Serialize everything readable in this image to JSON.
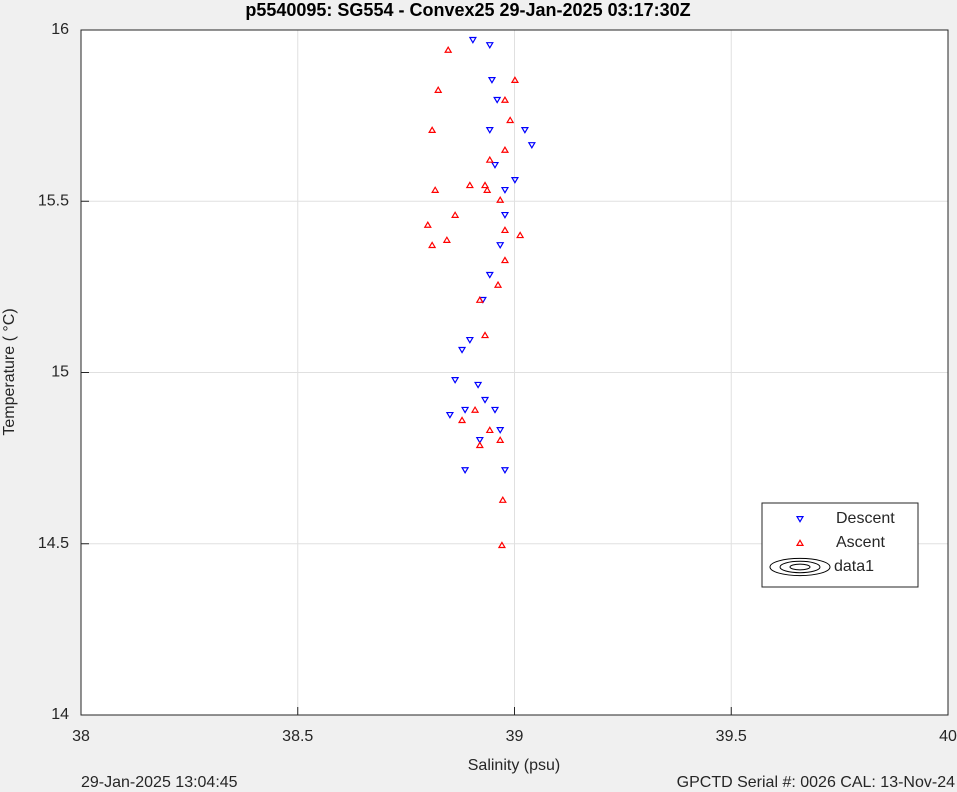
{
  "chart_data": {
    "type": "scatter",
    "title": "p5540095: SG554 - Convex25 29-Jan-2025 03:17:30Z",
    "x_label": "Salinity (psu)",
    "y_label": "Temperature (   °C)",
    "xlim": [
      38,
      40
    ],
    "xticks": [
      38,
      38.5,
      39,
      39.5,
      40
    ],
    "ylim": [
      14,
      16
    ],
    "yticks": [
      14,
      14.5,
      15,
      15.5,
      16
    ],
    "grid": true,
    "legend": "right",
    "footer_left": "29-Jan-2025 13:04:45",
    "footer_right": "GPCTD Serial #: 0026 CAL: 13-Nov-24",
    "series": [
      {
        "name": "Descent",
        "color": "#0000ff",
        "marker": "down-triangle",
        "x": [
          38.904,
          38.943,
          38.948,
          38.96,
          38.943,
          38.955,
          38.978,
          39.024,
          39.04,
          39.001,
          38.978,
          38.967,
          38.943,
          38.927,
          38.897,
          38.879,
          38.863,
          38.851,
          38.886,
          38.916,
          38.932,
          38.886,
          38.92,
          38.955,
          38.967,
          38.978
        ],
        "values": [
          15.971,
          15.956,
          15.854,
          15.796,
          15.708,
          15.606,
          15.533,
          15.708,
          15.664,
          15.562,
          15.46,
          15.372,
          15.285,
          15.212,
          15.095,
          15.066,
          14.978,
          14.876,
          14.891,
          14.964,
          14.92,
          14.715,
          14.803,
          14.891,
          14.832,
          14.715
        ]
      },
      {
        "name": "Ascent",
        "color": "#ff0000",
        "marker": "up-triangle",
        "x": [
          38.971,
          38.973,
          38.967,
          38.943,
          38.909,
          38.879,
          38.92,
          38.932,
          38.92,
          38.962,
          38.978,
          39.013,
          38.978,
          38.967,
          38.932,
          38.978,
          38.943,
          38.99,
          39.001,
          38.978,
          38.937,
          38.897,
          38.863,
          38.844,
          38.81,
          38.8,
          38.817,
          38.81,
          38.824,
          38.847
        ],
        "values": [
          14.496,
          14.628,
          14.803,
          14.832,
          14.891,
          14.861,
          14.788,
          15.109,
          15.212,
          15.256,
          15.328,
          15.401,
          15.416,
          15.504,
          15.547,
          15.65,
          15.621,
          15.737,
          15.854,
          15.796,
          15.533,
          15.547,
          15.46,
          15.387,
          15.372,
          15.431,
          15.533,
          15.708,
          15.825,
          15.942
        ]
      },
      {
        "name": "data1",
        "color": "#000000",
        "marker": "contour",
        "x": [],
        "values": []
      }
    ]
  }
}
